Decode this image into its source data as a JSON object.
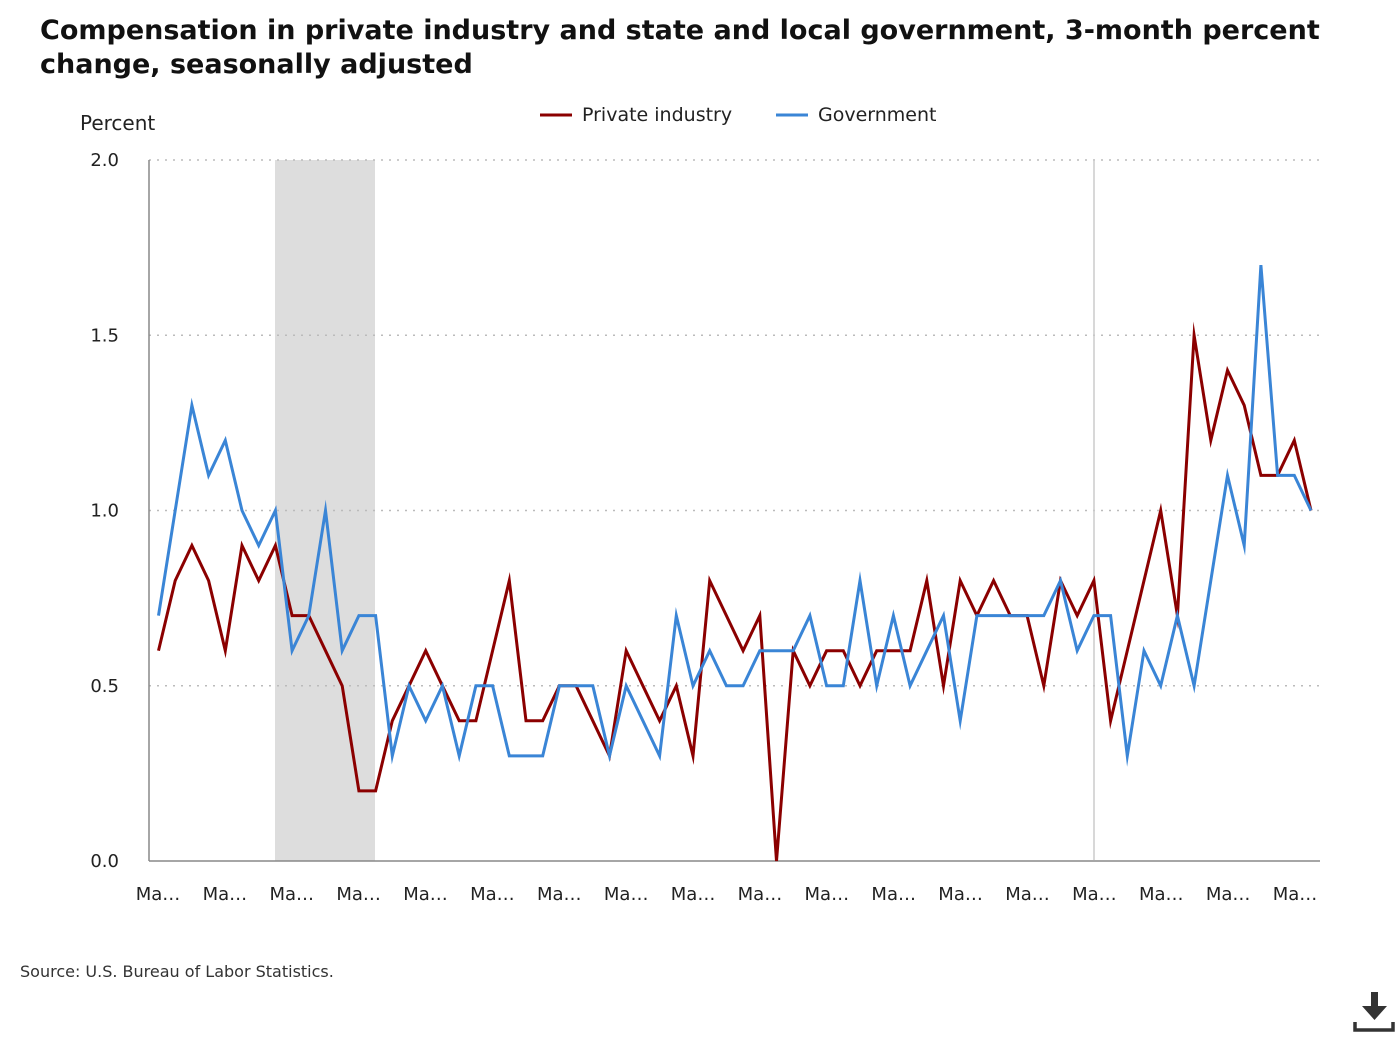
{
  "title": "Compensation in private industry and state and local government, 3-month percent change, seasonally adjusted",
  "source": "Source: U.S. Bureau of Labor Statistics.",
  "download_icon": "download-icon",
  "colors": {
    "private": "#8b0000",
    "government": "#3a85d6",
    "recession": "#dddddd",
    "grid": "#bbbbbb"
  },
  "chart_data": {
    "type": "line",
    "ylabel": "Percent",
    "ylim": [
      0,
      2.0
    ],
    "yticks": [
      "0.0",
      "0.5",
      "1.0",
      "1.5",
      "2.0"
    ],
    "xtick_labels": [
      "Ma…",
      "Ma…",
      "Ma…",
      "Ma…",
      "Ma…",
      "Ma…",
      "Ma…",
      "Ma…",
      "Ma…",
      "Ma…",
      "Ma…",
      "Ma…",
      "Ma…",
      "Ma…",
      "Ma…",
      "Ma…",
      "Ma…",
      "Ma…"
    ],
    "grid": "horizontal dotted",
    "legend": "top-center",
    "series": [
      {
        "name": "Private industry",
        "color": "#8b0000",
        "values": [
          0.6,
          0.8,
          0.9,
          0.8,
          0.6,
          0.9,
          0.8,
          0.9,
          0.7,
          0.7,
          0.6,
          0.5,
          0.2,
          0.2,
          0.4,
          0.5,
          0.6,
          0.5,
          0.4,
          0.4,
          0.6,
          0.8,
          0.4,
          0.4,
          0.5,
          0.5,
          0.4,
          0.3,
          0.6,
          0.5,
          0.4,
          0.5,
          0.3,
          0.8,
          0.7,
          0.6,
          0.7,
          0.0,
          0.6,
          0.5,
          0.6,
          0.6,
          0.5,
          0.6,
          0.6,
          0.6,
          0.8,
          0.5,
          0.8,
          0.7,
          0.8,
          0.7,
          0.7,
          0.5,
          0.8,
          0.7,
          0.8,
          0.4,
          0.6,
          0.8,
          1.0,
          0.7,
          1.5,
          1.2,
          1.4,
          1.3,
          1.1,
          1.1,
          1.2,
          1.0
        ]
      },
      {
        "name": "Government",
        "color": "#3a85d6",
        "values": [
          0.7,
          1.0,
          1.3,
          1.1,
          1.2,
          1.0,
          0.9,
          1.0,
          0.6,
          0.7,
          1.0,
          0.6,
          0.7,
          0.7,
          0.3,
          0.5,
          0.4,
          0.5,
          0.3,
          0.5,
          0.5,
          0.3,
          0.3,
          0.3,
          0.5,
          0.5,
          0.5,
          0.3,
          0.5,
          0.4,
          0.3,
          0.7,
          0.5,
          0.6,
          0.5,
          0.5,
          0.6,
          0.6,
          0.6,
          0.7,
          0.5,
          0.5,
          0.8,
          0.5,
          0.7,
          0.5,
          0.6,
          0.7,
          0.4,
          0.7,
          0.7,
          0.7,
          0.7,
          0.7,
          0.8,
          0.6,
          0.7,
          0.7,
          0.3,
          0.6,
          0.5,
          0.7,
          0.5,
          0.8,
          1.1,
          0.9,
          1.7,
          1.1,
          1.1,
          1.0
        ]
      }
    ]
  }
}
